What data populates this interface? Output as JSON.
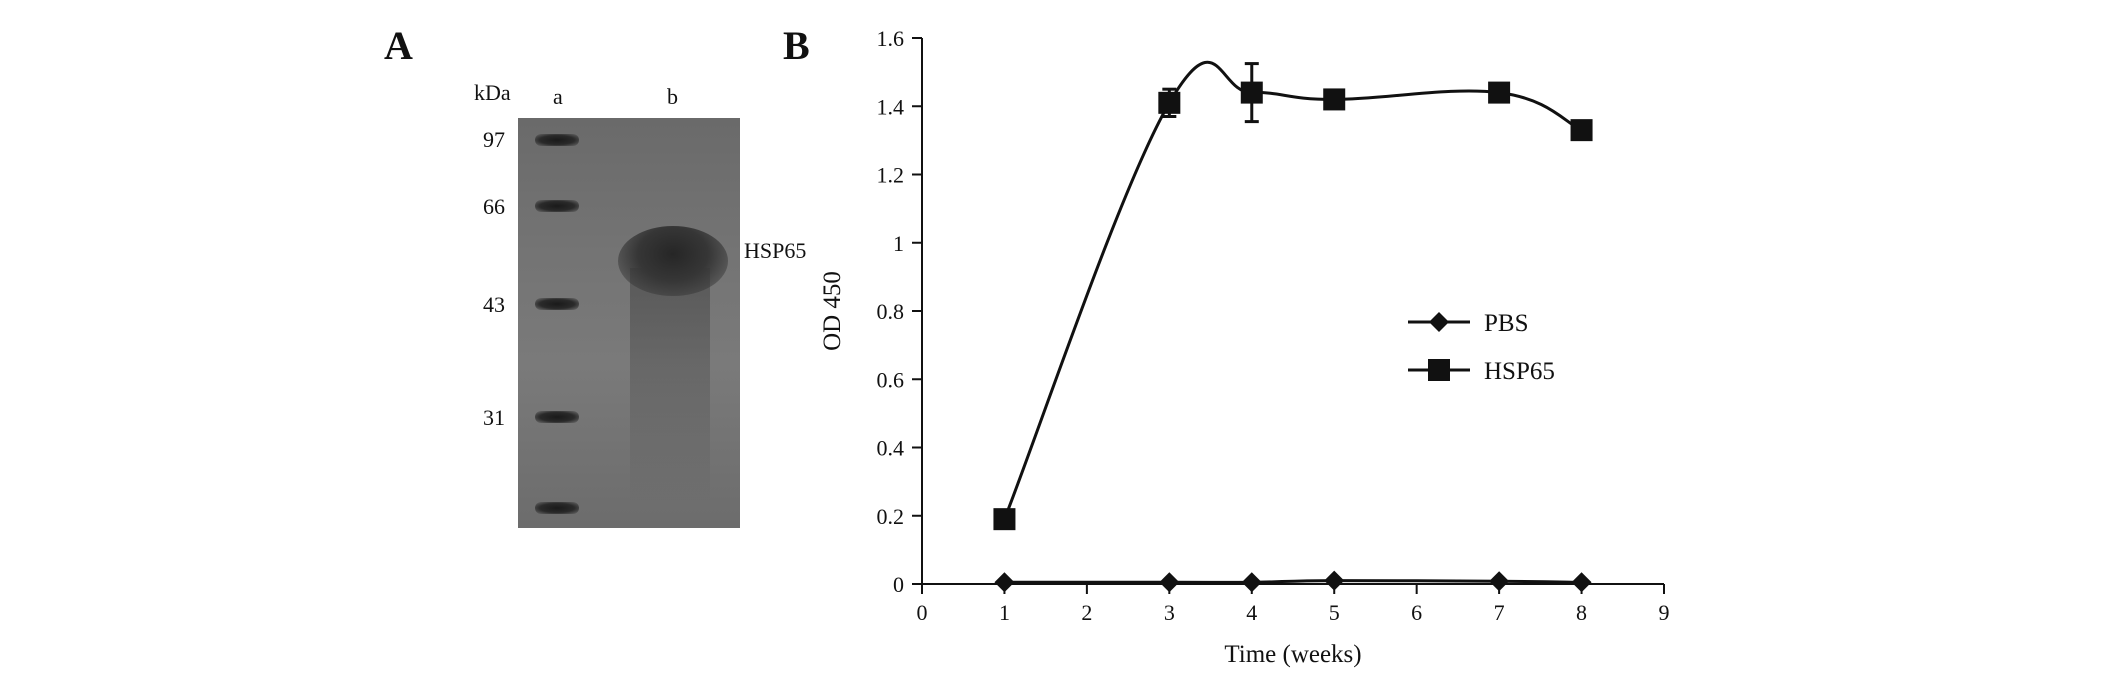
{
  "figure": {
    "panel_a_label": "A",
    "panel_b_label": "B"
  },
  "gel": {
    "unit_label": "kDa",
    "lane_labels": [
      "a",
      "b"
    ],
    "marker_labels": [
      "97",
      "66",
      "43",
      "31"
    ],
    "band_label": "HSP65"
  },
  "chart_data": {
    "type": "line",
    "xlabel": "Time (weeks)",
    "ylabel": "OD 450",
    "xlim": [
      0,
      9
    ],
    "ylim": [
      0,
      1.6
    ],
    "xticks": [
      "0",
      "1",
      "2",
      "3",
      "4",
      "5",
      "6",
      "7",
      "8",
      "9"
    ],
    "yticks": [
      "0",
      "0.2",
      "0.4",
      "0.6",
      "0.8",
      "1",
      "1.2",
      "1.4",
      "1.6"
    ],
    "legend_position": "right-middle",
    "series": [
      {
        "name": "PBS",
        "marker": "diamond",
        "x": [
          1,
          3,
          4,
          5,
          7,
          8
        ],
        "y": [
          0.005,
          0.005,
          0.005,
          0.01,
          0.008,
          0.005
        ],
        "err": [
          0,
          0,
          0,
          0,
          0,
          0
        ]
      },
      {
        "name": "HSP65",
        "marker": "square",
        "x": [
          1,
          3,
          4,
          5,
          7,
          8
        ],
        "y": [
          0.19,
          1.41,
          1.44,
          1.42,
          1.44,
          1.33
        ],
        "err": [
          0,
          0.04,
          0.085,
          0,
          0,
          0.02
        ]
      }
    ]
  }
}
